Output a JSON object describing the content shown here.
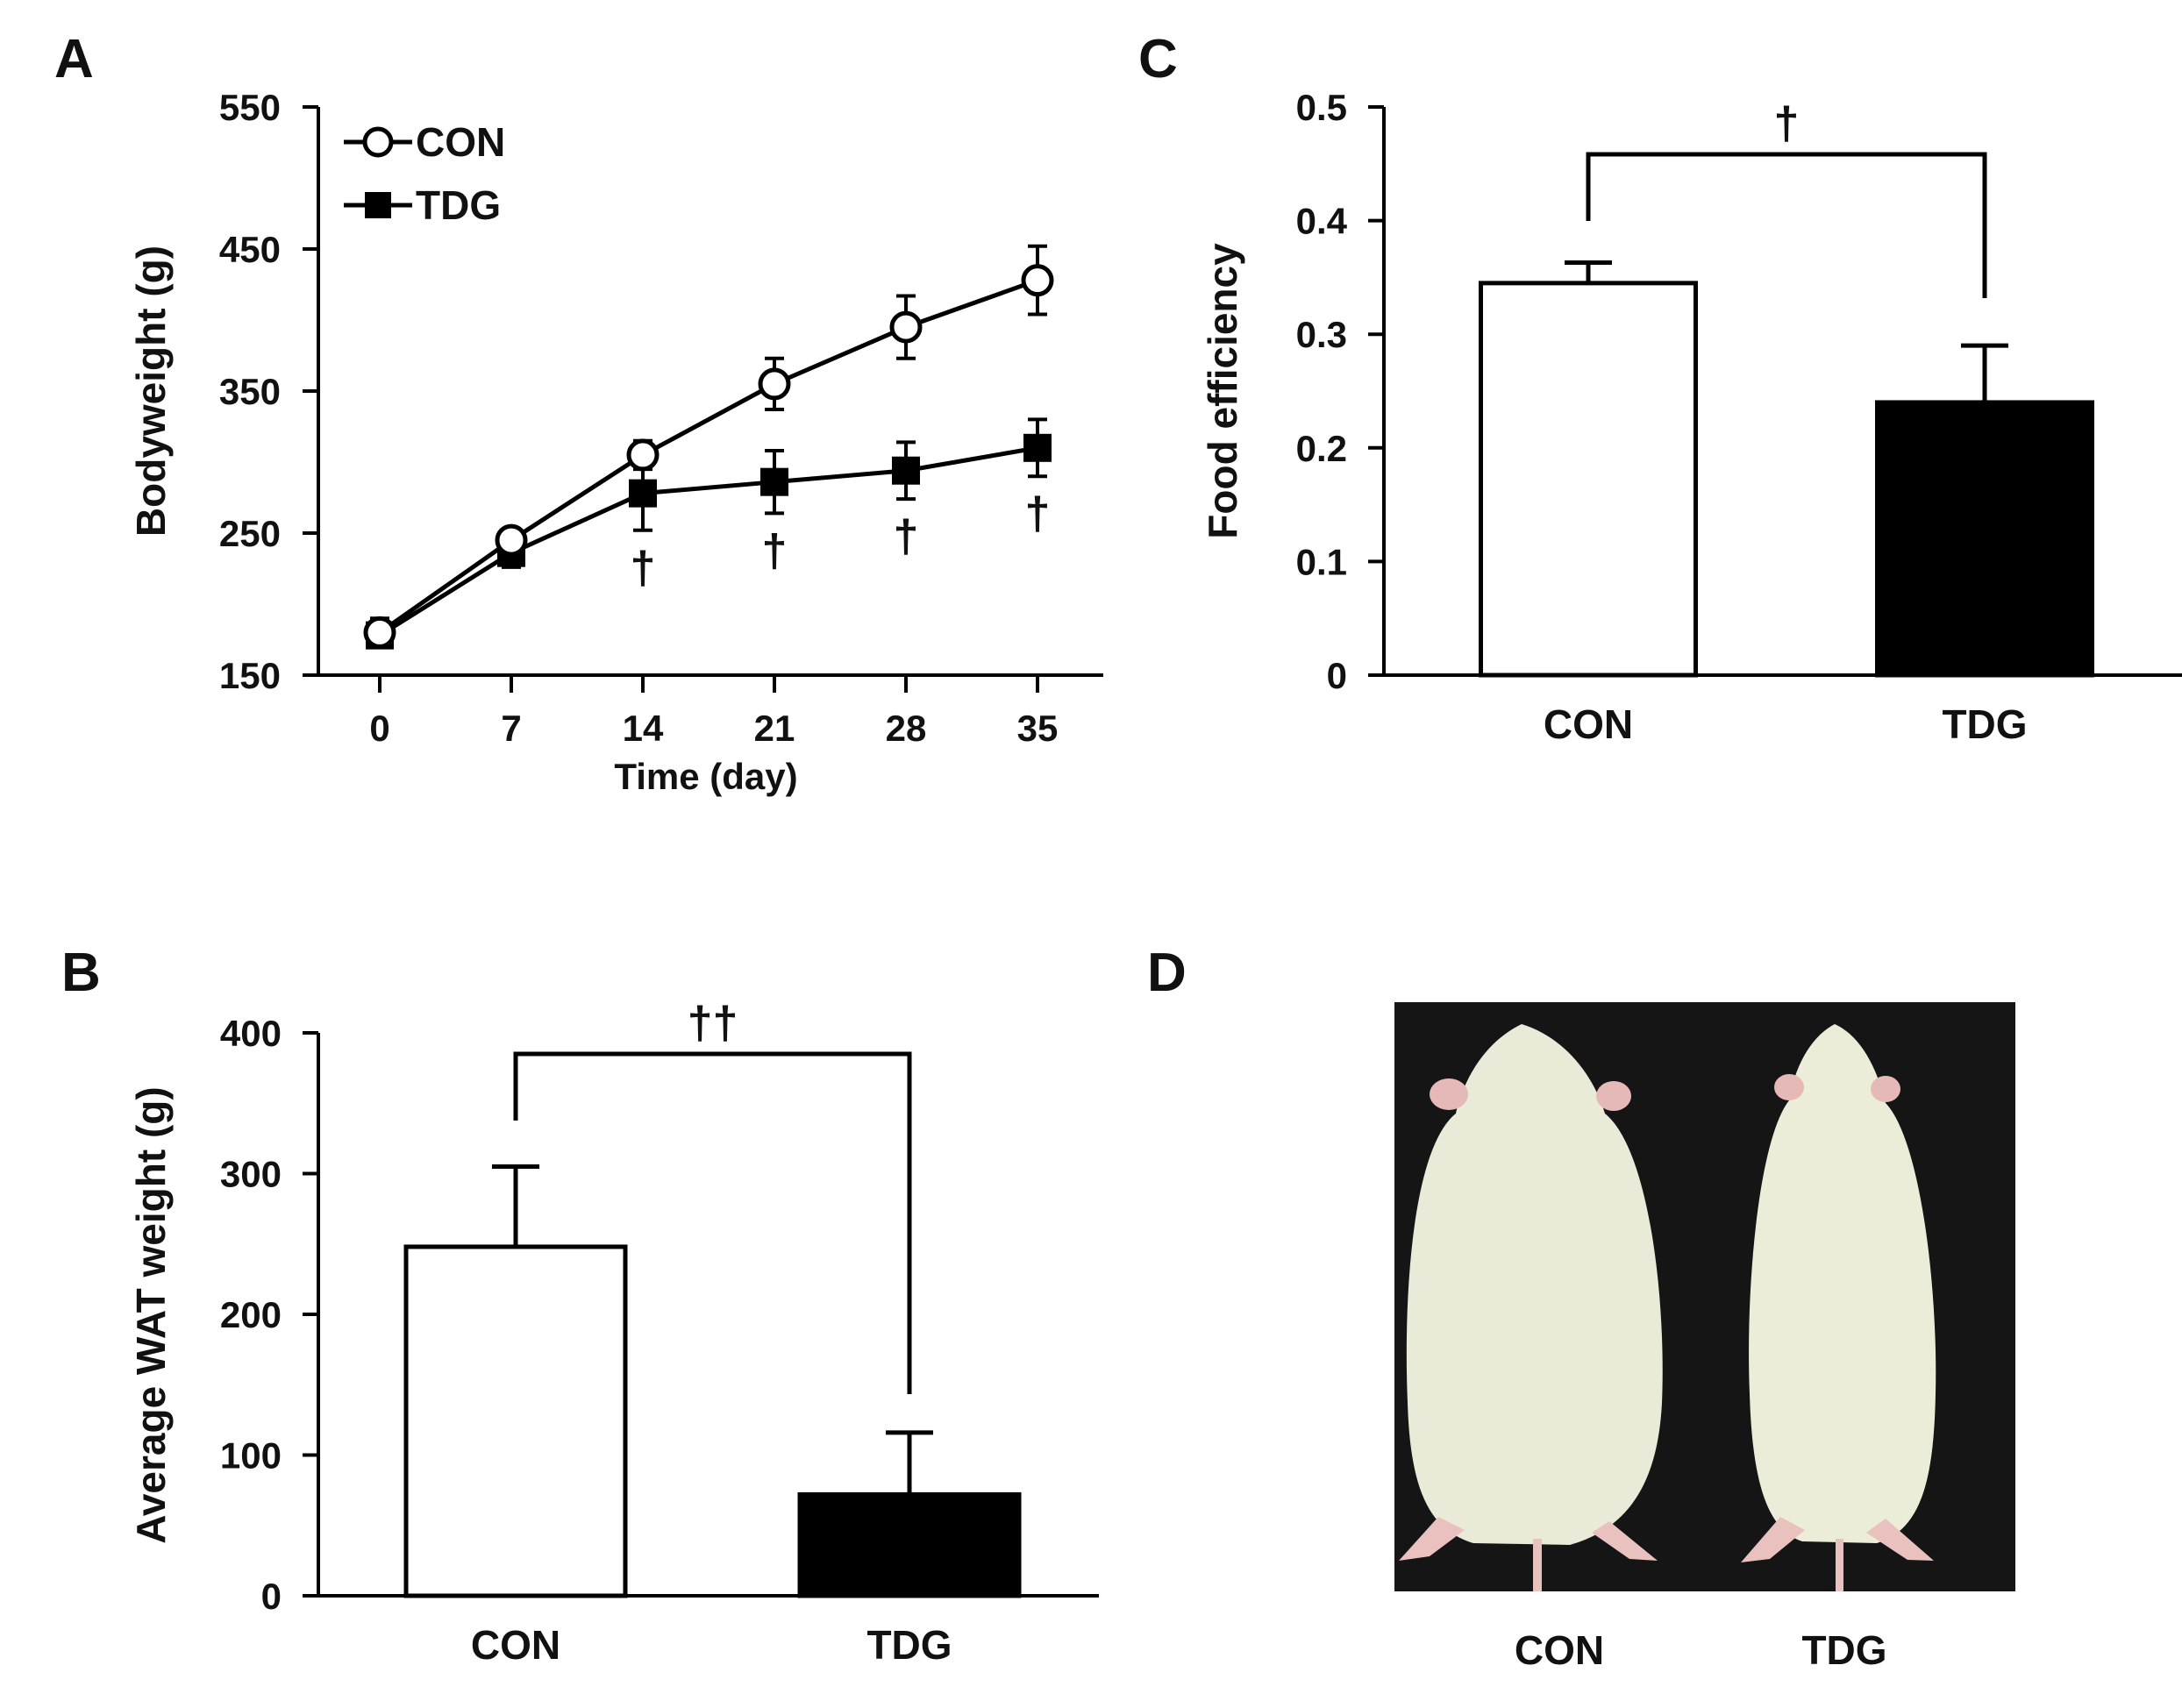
{
  "colors": {
    "filled": "#000000",
    "open": "#ffffff",
    "axis": "#000000",
    "photo_bg": "#111111",
    "rat_fur": "#e9ead8"
  },
  "chart_data": [
    {
      "panel": "A",
      "type": "line",
      "title": "",
      "xlabel": "Time (day)",
      "ylabel": "Bodyweight (g)",
      "x": [
        0,
        7,
        14,
        21,
        28,
        35
      ],
      "xticks": [
        "0",
        "7",
        "14",
        "21",
        "28",
        "35"
      ],
      "ylim": [
        150,
        550
      ],
      "yticks": [
        "150",
        "250",
        "350",
        "450",
        "550"
      ],
      "legend": "top-left",
      "series": [
        {
          "name": "CON",
          "marker": "open-circle",
          "values": [
            180,
            245,
            305,
            355,
            395,
            428
          ],
          "errors": [
            10,
            8,
            10,
            18,
            22,
            24
          ]
        },
        {
          "name": "TDG",
          "marker": "filled-square",
          "values": [
            178,
            236,
            278,
            286,
            294,
            310
          ],
          "errors": [
            8,
            10,
            26,
            22,
            20,
            20
          ]
        }
      ],
      "annotations": [
        {
          "x": 14,
          "text": "†"
        },
        {
          "x": 21,
          "text": "†"
        },
        {
          "x": 28,
          "text": "†"
        },
        {
          "x": 35,
          "text": "†"
        }
      ]
    },
    {
      "panel": "B",
      "type": "bar",
      "title": "",
      "xlabel": "",
      "ylabel": "Average WAT weight (g)",
      "categories": [
        "CON",
        "TDG"
      ],
      "values": [
        248,
        72
      ],
      "errors": [
        57,
        44
      ],
      "fills": [
        "open",
        "filled"
      ],
      "ylim": [
        0,
        400
      ],
      "yticks": [
        "0",
        "100",
        "200",
        "300",
        "400"
      ],
      "significance": "††"
    },
    {
      "panel": "C",
      "type": "bar",
      "title": "",
      "xlabel": "",
      "ylabel": "Food efficiency",
      "categories": [
        "CON",
        "TDG"
      ],
      "values": [
        0.345,
        0.24
      ],
      "errors": [
        0.018,
        0.05
      ],
      "fills": [
        "open",
        "filled"
      ],
      "ylim": [
        0,
        0.5
      ],
      "yticks": [
        "0",
        "0.1",
        "0.2",
        "0.3",
        "0.4",
        "0.5"
      ],
      "significance": "†"
    }
  ],
  "photo": {
    "panel": "D",
    "labels": [
      "CON",
      "TDG"
    ]
  }
}
